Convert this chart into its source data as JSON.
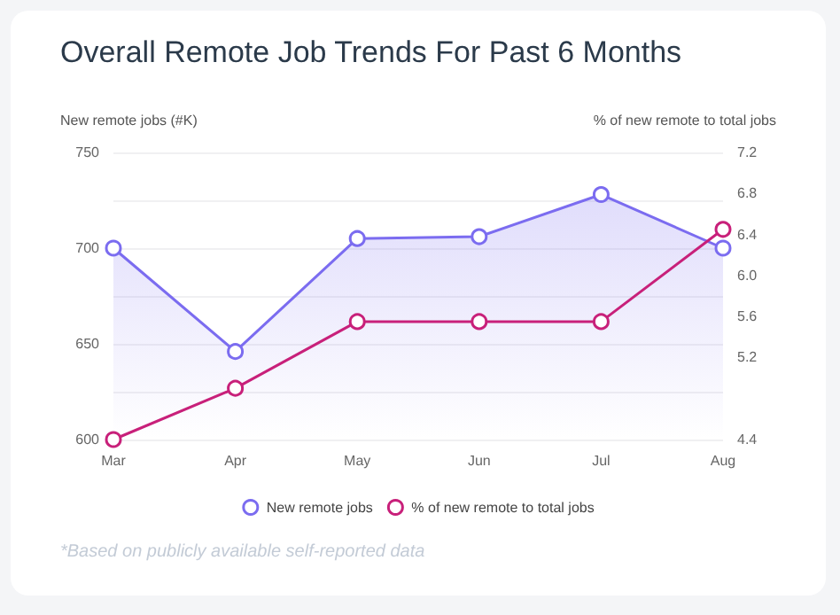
{
  "chart_data": {
    "type": "line",
    "title": "Overall Remote Job Trends For Past 6 Months",
    "ylabel": "New remote jobs (#K)",
    "y2label": "% of new remote to total jobs",
    "categories": [
      "Mar",
      "Apr",
      "May",
      "Jun",
      "Jul",
      "Aug"
    ],
    "series": [
      {
        "name": "New remote jobs",
        "type": "area",
        "color": "#7b6cf0",
        "values": [
          700,
          646,
          705,
          706,
          728,
          700
        ]
      },
      {
        "name": "% of new remote to total jobs",
        "axis": "y2",
        "color": "#c8207a",
        "values": [
          4.4,
          4.9,
          5.55,
          5.55,
          5.55,
          6.45
        ]
      }
    ],
    "ylim": [
      600,
      750
    ],
    "yticks": [
      600,
      {
        "value": 625,
        "label": null
      },
      650,
      {
        "value": 675,
        "label": null
      },
      700,
      {
        "value": 725,
        "label": null
      },
      750
    ],
    "y2lim": [
      4.4,
      7.2
    ],
    "y2ticks": [
      4.4,
      5.2,
      5.6,
      {
        "value": 6,
        "label": "6.0"
      },
      6.4,
      6.8,
      7.2
    ],
    "grid": "y",
    "legend": "bottom",
    "marker": "circle",
    "annotations": [
      "*Based on publicly available self-reported data"
    ]
  }
}
